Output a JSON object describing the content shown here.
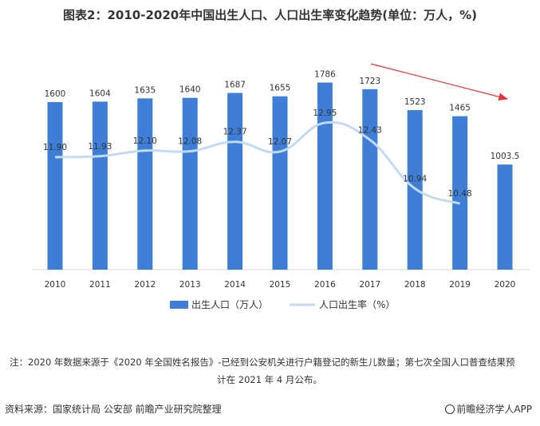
{
  "title": "图表2：2010-2020年中国出生人口、人口出生率变化趋势(单位：万人，%)",
  "chart_data": {
    "type": "bar",
    "categories": [
      "2010",
      "2011",
      "2012",
      "2013",
      "2014",
      "2015",
      "2016",
      "2017",
      "2018",
      "2019",
      "2020"
    ],
    "series": [
      {
        "name": "出生人口（万人）",
        "type": "bar",
        "values": [
          1600,
          1604,
          1635,
          1640,
          1687,
          1655,
          1786,
          1723,
          1523,
          1465,
          1003.5
        ],
        "labels": [
          "1600",
          "1604",
          "1635",
          "1640",
          "1687",
          "1655",
          "1786",
          "1723",
          "1523",
          "1465",
          "1003.5"
        ]
      },
      {
        "name": "人口出生率（%）",
        "type": "line",
        "values": [
          11.9,
          11.93,
          12.1,
          12.08,
          12.37,
          12.07,
          12.95,
          12.43,
          10.94,
          10.48,
          null
        ],
        "labels": [
          "11.90",
          "11.93",
          "12.10",
          "12.08",
          "12.37",
          "12.07",
          "12.95",
          "12.43",
          "10.94",
          "10.48",
          ""
        ]
      }
    ],
    "legend_position": "bottom",
    "grid": false,
    "annotations": [
      "red downward trend arrow over 2017-2020"
    ]
  },
  "colors": {
    "bar": "#3e7ed6",
    "line": "#c3daf1",
    "arrow": "#e8333b",
    "axis": "#d9d9d9"
  },
  "note_line1": "注：2020 年数据来源于《2020 年全国姓名报告》-已经到公安机关进行户籍登记的新生儿数量；第七次全国人口普查结果预",
  "note_line2": "计在 2021 年 4 月公布。",
  "source": "资料来源：国家统计局 公安部 前瞻产业研究院整理",
  "brand": "前瞻经济学人APP"
}
